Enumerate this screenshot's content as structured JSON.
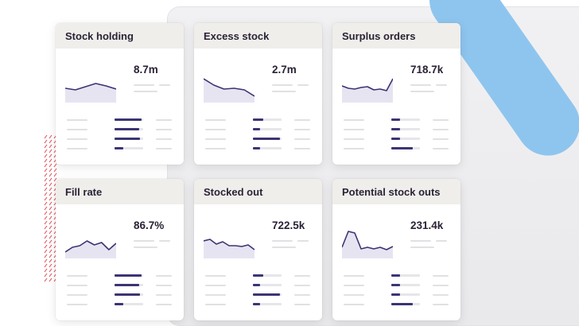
{
  "colors": {
    "accent": "#3b3474",
    "header_bg": "#efeeea",
    "spark_fill": "#e6e4f1",
    "decor_blue": "#8ec5ee",
    "decor_red": "#e0464f"
  },
  "cards": [
    {
      "title": "Stock holding",
      "value": "8.7m",
      "spark": [
        26,
        28,
        24,
        20,
        23,
        27
      ],
      "bars": [
        0.95,
        0.85,
        0.9,
        0.3
      ]
    },
    {
      "title": "Excess stock",
      "value": "2.7m",
      "spark": [
        14,
        22,
        27,
        26,
        28,
        36
      ],
      "bars": [
        0.35,
        0.25,
        0.95,
        0.25
      ]
    },
    {
      "title": "Surplus orders",
      "value": "718.7k",
      "spark": [
        23,
        26,
        27,
        25,
        24,
        28,
        27,
        29,
        14
      ],
      "bars": [
        0.3,
        0.3,
        0.3,
        0.75
      ]
    },
    {
      "title": "Fill rate",
      "value": "86.7%",
      "spark": [
        36,
        30,
        28,
        22,
        27,
        24,
        33,
        25
      ],
      "bars": [
        0.95,
        0.85,
        0.9,
        0.3
      ]
    },
    {
      "title": "Stocked out",
      "value": "722.5k",
      "spark": [
        22,
        20,
        26,
        23,
        28,
        28,
        29,
        27,
        33
      ],
      "bars": [
        0.35,
        0.25,
        0.95,
        0.25
      ]
    },
    {
      "title": "Potential stock outs",
      "value": "231.4k",
      "spark": [
        30,
        10,
        12,
        32,
        30,
        32,
        30,
        33,
        29
      ],
      "bars": [
        0.3,
        0.3,
        0.3,
        0.75
      ]
    }
  ]
}
